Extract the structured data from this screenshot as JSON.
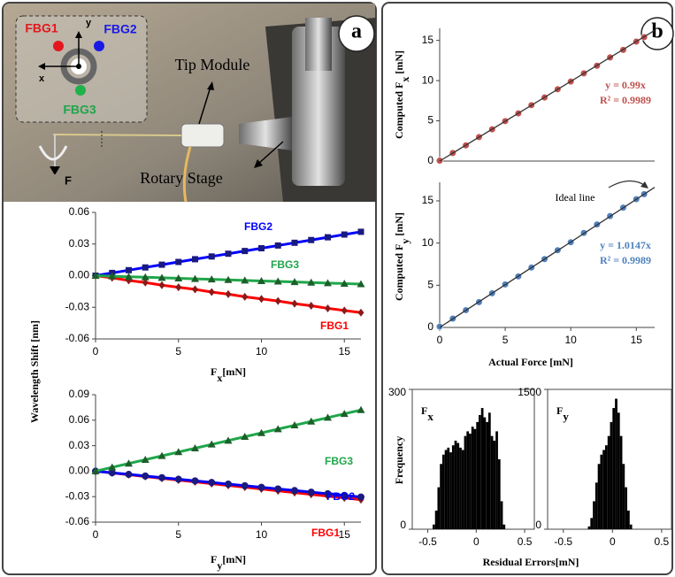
{
  "panels": [
    "a",
    "b"
  ],
  "photo": {
    "fbg1": "FBG1",
    "fbg2": "FBG2",
    "fbg3": "FBG3",
    "axis_y": "y",
    "axis_x": "x",
    "tip_module": "Tip Module",
    "rotary_stage": "Rotary Stage",
    "force": "F"
  },
  "chart_data": [
    {
      "type": "line",
      "xlabel": [
        "F",
        "x",
        "[mN]"
      ],
      "ylabel": "Wavelength Shift [nm]",
      "x": [
        0,
        1,
        2,
        3,
        4,
        5,
        6,
        7,
        8,
        9,
        10,
        11,
        12,
        13,
        14,
        15,
        16
      ],
      "xlim": [
        0,
        16
      ],
      "xticks": [
        0,
        5,
        10,
        15
      ],
      "ylim": [
        -0.06,
        0.06
      ],
      "yticks": [
        -0.06,
        -0.03,
        {
          "value": 0,
          "label": "0.00"
        },
        0.03,
        0.06
      ],
      "series": [
        {
          "name": "FBG1",
          "color": "#ff0000",
          "marker_color": "#8b1a1a",
          "marker": "diamond",
          "values": [
            0,
            -0.002,
            -0.0045,
            -0.0065,
            -0.009,
            -0.011,
            -0.013,
            -0.0155,
            -0.0175,
            -0.02,
            -0.022,
            -0.024,
            -0.0265,
            -0.0285,
            -0.031,
            -0.033,
            -0.035
          ]
        },
        {
          "name": "FBG2",
          "color": "#0000ff",
          "marker_color": "#1a1a80",
          "marker": "square",
          "values": [
            0,
            0.0026,
            0.0052,
            0.0078,
            0.0104,
            0.013,
            0.0156,
            0.0182,
            0.0208,
            0.0234,
            0.026,
            0.0286,
            0.0312,
            0.0338,
            0.0364,
            0.039,
            0.0416
          ]
        },
        {
          "name": "FBG3",
          "color": "#1fa64a",
          "marker_color": "#1d5e2a",
          "marker": "triangle",
          "values": [
            0,
            -0.0005,
            -0.001,
            -0.0015,
            -0.002,
            -0.0025,
            -0.003,
            -0.0035,
            -0.004,
            -0.0045,
            -0.005,
            -0.0055,
            -0.006,
            -0.0065,
            -0.007,
            -0.0075,
            -0.008
          ]
        }
      ]
    },
    {
      "type": "line",
      "xlabel": [
        "F",
        "y",
        "[mN]"
      ],
      "x": [
        0,
        1,
        2,
        3,
        4,
        5,
        6,
        7,
        8,
        9,
        10,
        11,
        12,
        13,
        14,
        15,
        16
      ],
      "xlim": [
        0,
        16
      ],
      "xticks": [
        0,
        5,
        10,
        15
      ],
      "ylim": [
        -0.06,
        0.09
      ],
      "yticks": [
        -0.06,
        -0.03,
        {
          "value": 0,
          "label": "0.00"
        },
        0.03,
        0.06,
        0.09
      ],
      "series": [
        {
          "name": "FBG1",
          "color": "#ff0000",
          "marker_color": "#8b1a1a",
          "marker": "diamond",
          "values": [
            0,
            -0.0021,
            -0.0042,
            -0.0063,
            -0.0084,
            -0.0105,
            -0.0126,
            -0.0147,
            -0.0168,
            -0.0189,
            -0.021,
            -0.0231,
            -0.0252,
            -0.0273,
            -0.0294,
            -0.0315,
            -0.0336
          ]
        },
        {
          "name": "FBG2",
          "color": "#0000ff",
          "marker_color": "#1a1a80",
          "marker": "circle",
          "values": [
            0,
            -0.0019,
            -0.0038,
            -0.0057,
            -0.0076,
            -0.0095,
            -0.0114,
            -0.0133,
            -0.0152,
            -0.0171,
            -0.019,
            -0.0209,
            -0.0228,
            -0.0247,
            -0.0266,
            -0.0285,
            -0.0304
          ]
        },
        {
          "name": "FBG3",
          "color": "#1fa64a",
          "marker_color": "#1d5e2a",
          "marker": "triangle",
          "values": [
            0,
            0.0045,
            0.009,
            0.0135,
            0.018,
            0.0225,
            0.027,
            0.0315,
            0.036,
            0.0405,
            0.045,
            0.0495,
            0.054,
            0.0585,
            0.063,
            0.0675,
            0.072
          ]
        }
      ]
    },
    {
      "type": "scatter",
      "ylabel": [
        "Computed F",
        "x",
        " [mN]"
      ],
      "xlim": [
        0,
        16.4
      ],
      "ylim": [
        0,
        16.5
      ],
      "yticks": [
        0,
        5,
        10,
        15
      ],
      "annotations": [
        "y = 0.99x",
        "R² = 0.9989"
      ],
      "annotation_color": "#c0504d",
      "series": [
        {
          "color": "#c0504d",
          "x": [
            0,
            1,
            2,
            3,
            4,
            5,
            6,
            7,
            8,
            9,
            10,
            11,
            12,
            13,
            14,
            15,
            15.6
          ],
          "values": [
            0.05,
            1.0,
            1.95,
            2.98,
            3.95,
            4.97,
            5.93,
            6.95,
            7.9,
            8.93,
            9.88,
            10.9,
            11.85,
            12.88,
            13.82,
            14.85,
            15.4
          ]
        },
        {
          "color": "#333333",
          "kind": "line",
          "x": [
            0,
            16.4
          ],
          "values": [
            0,
            16.24
          ]
        }
      ]
    },
    {
      "type": "scatter",
      "ylabel": [
        "Computed F",
        "y",
        " [mN]"
      ],
      "xlabel": "Actual Force [mN]",
      "xlim": [
        0,
        16.4
      ],
      "xticks": [
        0,
        5,
        10,
        15
      ],
      "ylim": [
        0,
        17.2
      ],
      "yticks": [
        0,
        5,
        10,
        15
      ],
      "annotations": [
        "y = 1.0147x",
        "R² = 0.9989"
      ],
      "annotation_color": "#4f81bd",
      "line_label": "Ideal line",
      "series": [
        {
          "color": "#4f81bd",
          "x": [
            0,
            1,
            2,
            3,
            4,
            5,
            6,
            7,
            8,
            9,
            10,
            11,
            12,
            13,
            14,
            15,
            15.6
          ],
          "values": [
            0.1,
            1.05,
            2.05,
            3.0,
            4.05,
            5.1,
            6.05,
            7.1,
            8.1,
            9.15,
            10.1,
            11.2,
            12.2,
            13.2,
            14.2,
            15.2,
            15.8
          ]
        },
        {
          "color": "#333333",
          "kind": "line",
          "x": [
            0,
            16.4
          ],
          "values": [
            0,
            16.6
          ]
        }
      ]
    },
    {
      "type": "histogram",
      "label": [
        "F",
        "x"
      ],
      "ylabel": "Frequency",
      "xlabel": "Residual Errors[mN]",
      "xlim": [
        -0.66,
        0.6
      ],
      "xticks": [
        -0.5,
        0,
        0.5
      ],
      "ylim": [
        0,
        300
      ],
      "yticks": [
        0,
        300
      ],
      "color": "#000000",
      "bins": [
        -0.45,
        -0.425,
        -0.4,
        -0.375,
        -0.35,
        -0.325,
        -0.3,
        -0.275,
        -0.25,
        -0.225,
        -0.2,
        -0.175,
        -0.15,
        -0.125,
        -0.1,
        -0.075,
        -0.05,
        -0.025,
        0,
        0.025,
        0.05,
        0.075,
        0.1,
        0.125,
        0.15,
        0.175,
        0.2,
        0.225,
        0.25,
        0.275,
        0.3
      ],
      "counts": [
        10,
        40,
        90,
        140,
        160,
        170,
        175,
        165,
        180,
        190,
        185,
        175,
        170,
        200,
        210,
        205,
        220,
        215,
        230,
        245,
        260,
        240,
        230,
        250,
        200,
        190,
        210,
        150,
        60,
        10
      ]
    },
    {
      "type": "histogram",
      "label": [
        "F",
        "y"
      ],
      "xlim": [
        -0.66,
        0.6
      ],
      "xticks": [
        -0.5,
        0,
        0.5
      ],
      "ylim": [
        0,
        1500
      ],
      "yticks": [
        0,
        1500
      ],
      "color": "#000000",
      "bins": [
        -0.25,
        -0.225,
        -0.2,
        -0.175,
        -0.15,
        -0.125,
        -0.1,
        -0.075,
        -0.05,
        -0.025,
        0,
        0.025,
        0.05,
        0.075,
        0.1,
        0.125,
        0.15,
        0.175,
        0.2
      ],
      "counts": [
        30,
        120,
        300,
        500,
        700,
        800,
        850,
        900,
        1000,
        1150,
        1300,
        1400,
        1250,
        1000,
        700,
        450,
        200,
        50
      ]
    }
  ]
}
